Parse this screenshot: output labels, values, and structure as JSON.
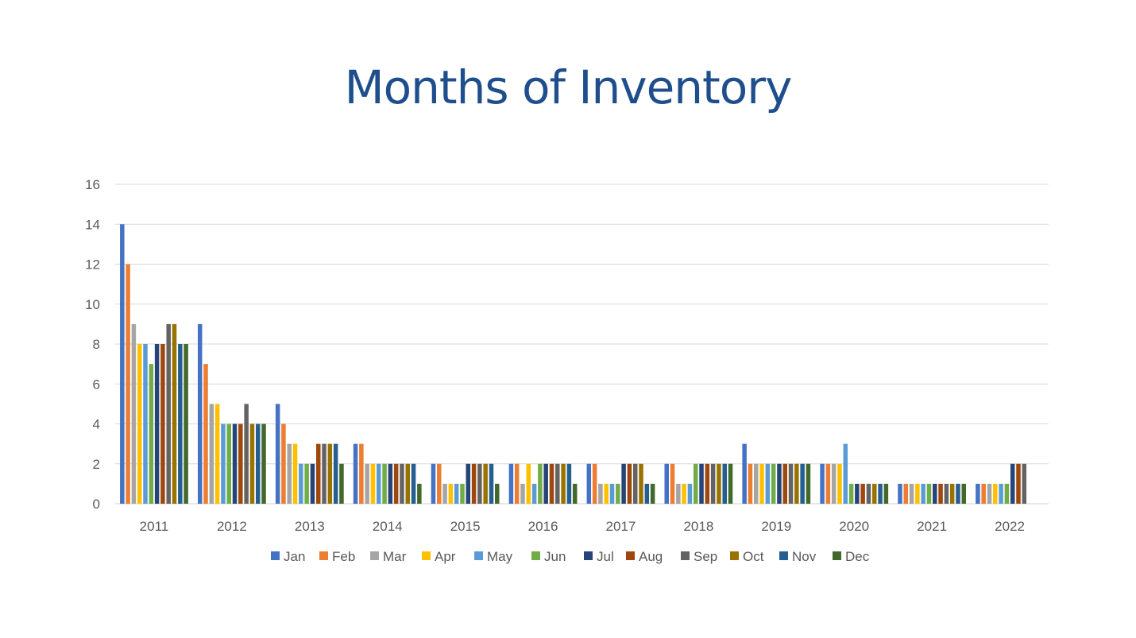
{
  "slide": {
    "title": "Months of Inventory"
  },
  "chart_data": {
    "type": "bar",
    "title": "Months of Inventory",
    "xlabel": "",
    "ylabel": "",
    "ylim": [
      0,
      16
    ],
    "yticks": [
      0,
      2,
      4,
      6,
      8,
      10,
      12,
      14,
      16
    ],
    "grid": true,
    "legend_position": "bottom",
    "categories": [
      "2011",
      "2012",
      "2013",
      "2014",
      "2015",
      "2016",
      "2017",
      "2018",
      "2019",
      "2020",
      "2021",
      "2022"
    ],
    "series": [
      {
        "name": "Jan",
        "color": "#4472c4",
        "values": [
          14,
          9,
          5,
          3,
          2,
          2,
          2,
          2,
          3,
          2,
          1,
          1
        ]
      },
      {
        "name": "Feb",
        "color": "#ed7d31",
        "values": [
          12,
          7,
          4,
          3,
          2,
          2,
          2,
          2,
          2,
          2,
          1,
          1
        ]
      },
      {
        "name": "Mar",
        "color": "#a5a5a5",
        "values": [
          9,
          5,
          3,
          2,
          1,
          1,
          1,
          1,
          2,
          2,
          1,
          1
        ]
      },
      {
        "name": "Apr",
        "color": "#ffc000",
        "values": [
          8,
          5,
          3,
          2,
          1,
          2,
          1,
          1,
          2,
          2,
          1,
          1
        ]
      },
      {
        "name": "May",
        "color": "#5b9bd5",
        "values": [
          8,
          4,
          2,
          2,
          1,
          1,
          1,
          1,
          2,
          3,
          1,
          1
        ]
      },
      {
        "name": "Jun",
        "color": "#70ad47",
        "values": [
          7,
          4,
          2,
          2,
          1,
          2,
          1,
          2,
          2,
          1,
          1,
          1
        ]
      },
      {
        "name": "Jul",
        "color": "#264478",
        "values": [
          8,
          4,
          2,
          2,
          2,
          2,
          2,
          2,
          2,
          1,
          1,
          2
        ]
      },
      {
        "name": "Aug",
        "color": "#9e480e",
        "values": [
          8,
          4,
          3,
          2,
          2,
          2,
          2,
          2,
          2,
          1,
          1,
          2
        ]
      },
      {
        "name": "Sep",
        "color": "#636363",
        "values": [
          9,
          5,
          3,
          2,
          2,
          2,
          2,
          2,
          2,
          1,
          1,
          2
        ]
      },
      {
        "name": "Oct",
        "color": "#997300",
        "values": [
          9,
          4,
          3,
          2,
          2,
          2,
          2,
          2,
          2,
          1,
          1,
          null
        ]
      },
      {
        "name": "Nov",
        "color": "#255e91",
        "values": [
          8,
          4,
          3,
          2,
          2,
          2,
          1,
          2,
          2,
          1,
          1,
          null
        ]
      },
      {
        "name": "Dec",
        "color": "#43682b",
        "values": [
          8,
          4,
          2,
          1,
          1,
          1,
          1,
          2,
          2,
          1,
          1,
          null
        ]
      }
    ]
  }
}
